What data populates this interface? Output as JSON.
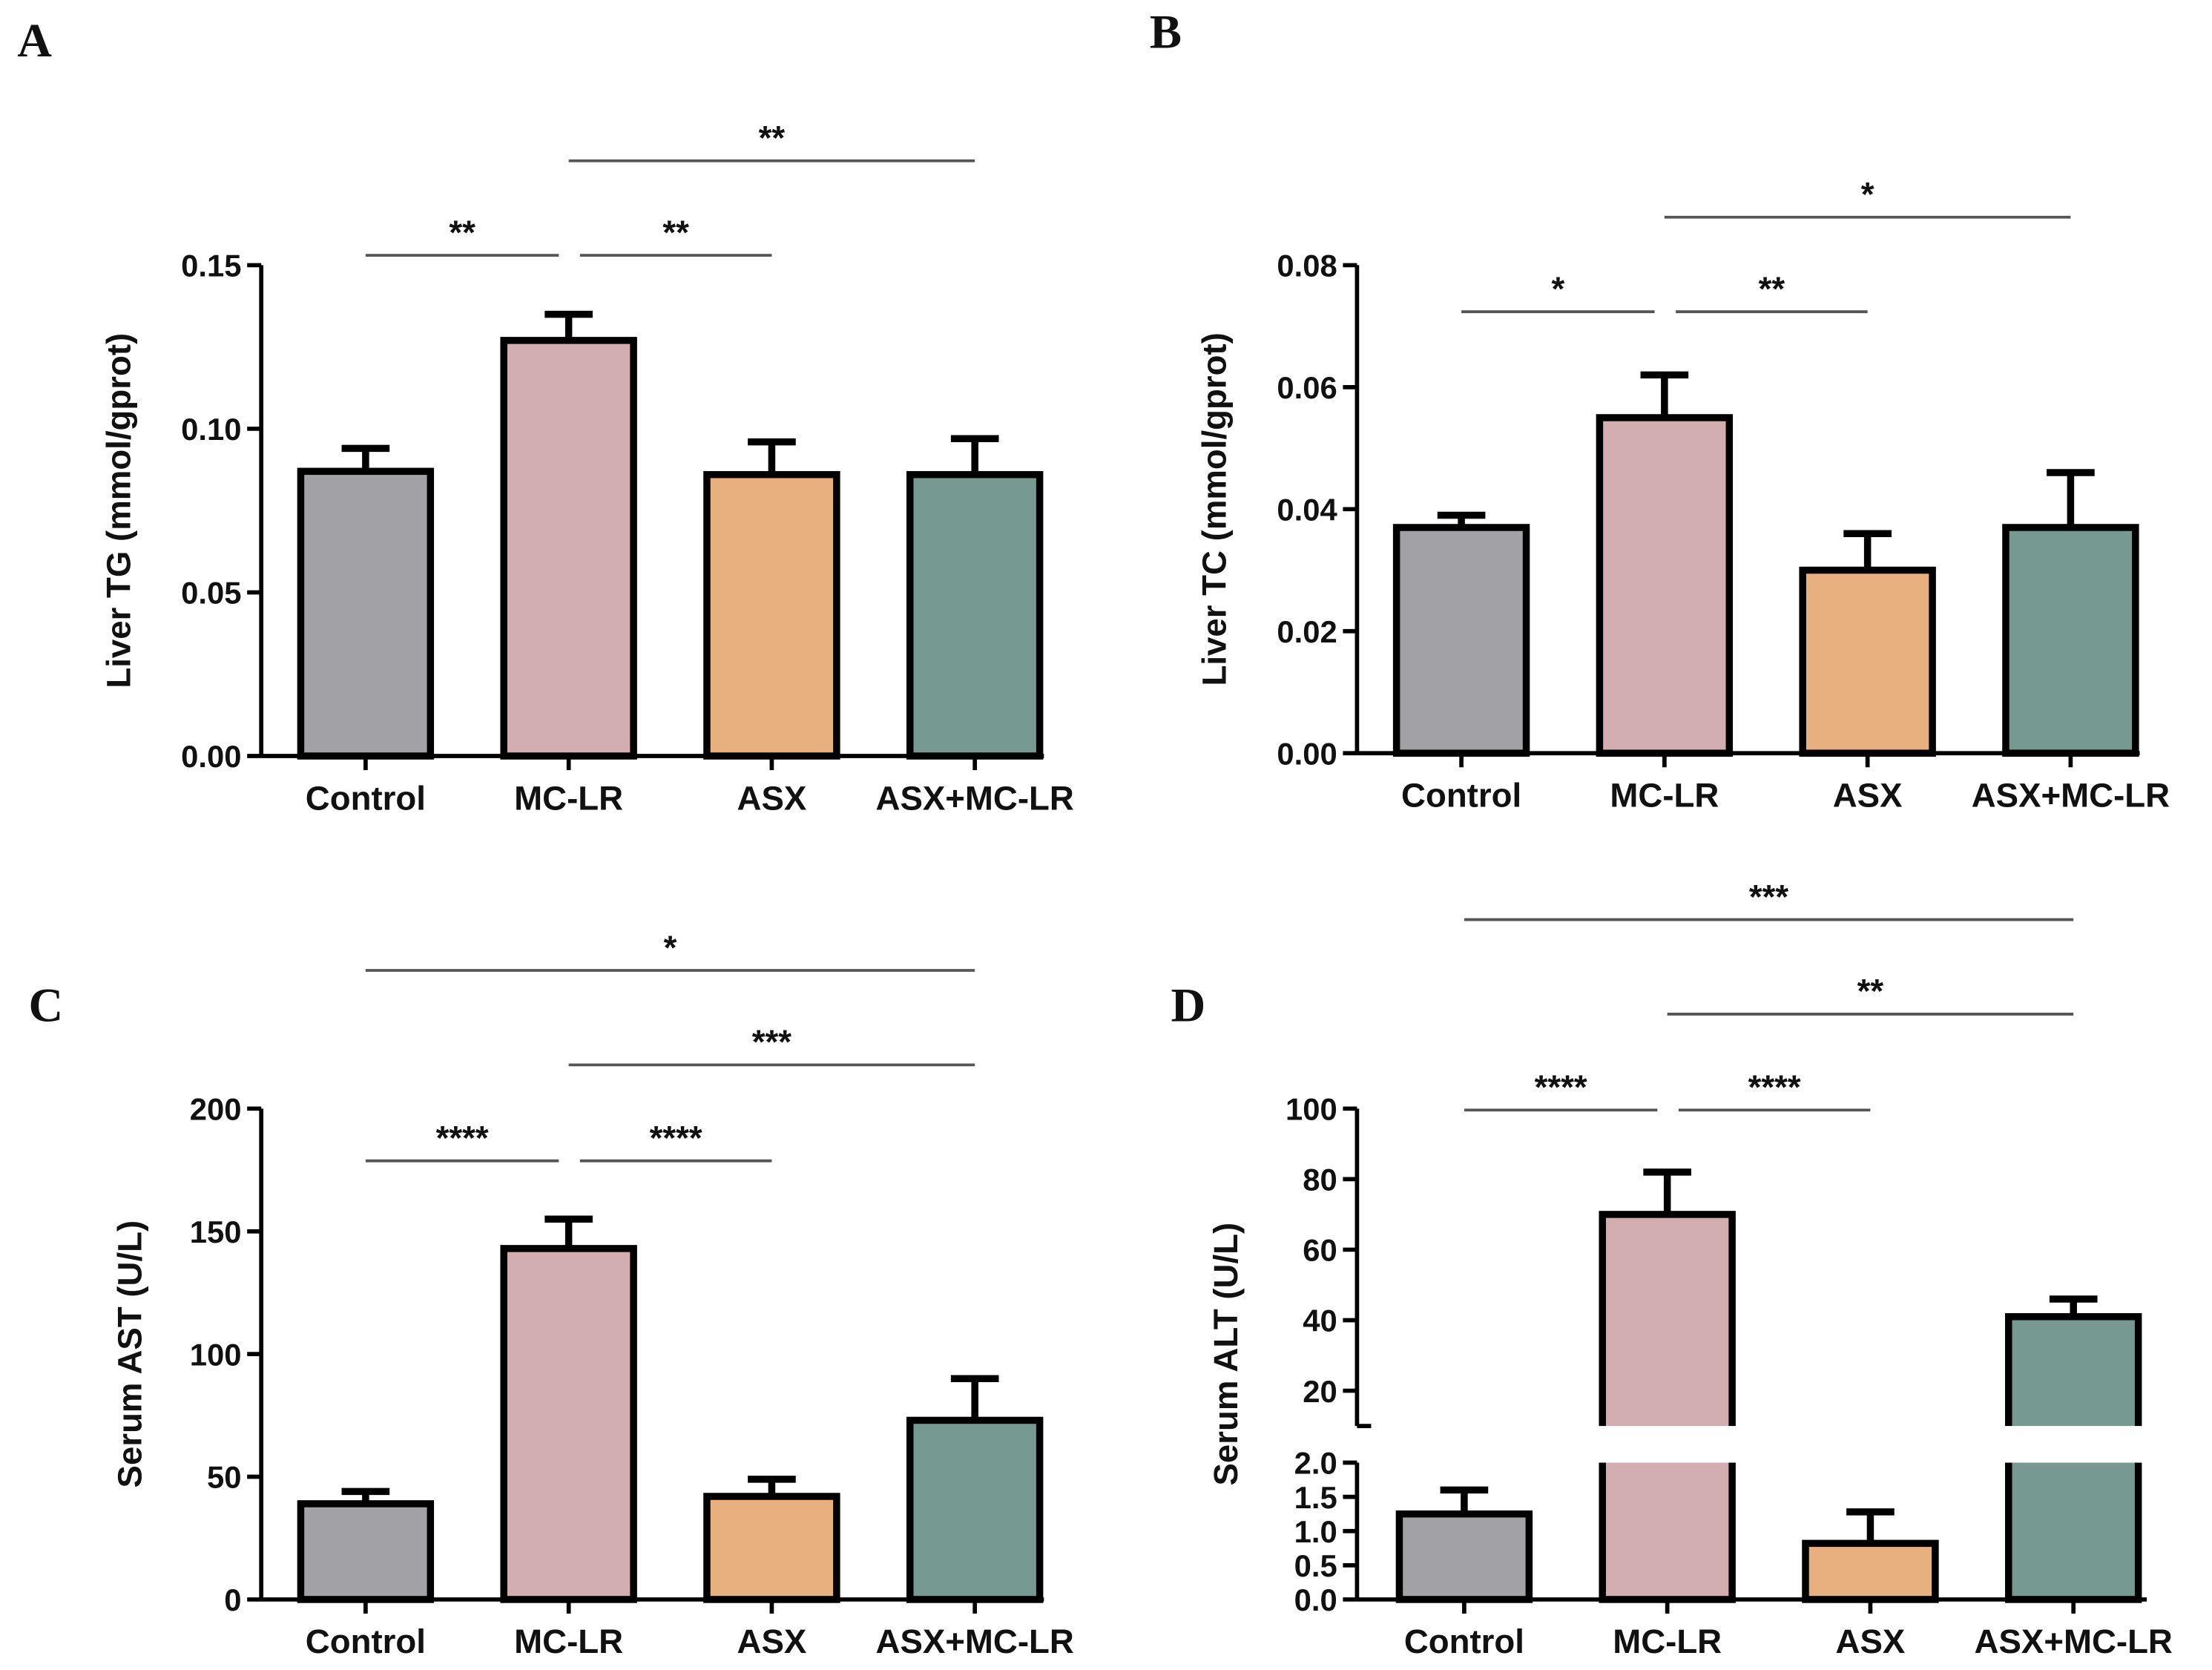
{
  "colors": {
    "Control": "#a2a1a6",
    "MC-LR": "#d3aeb1",
    "ASX": "#e8b07f",
    "ASX+MC-LR": "#769a91",
    "sig_line": "#555555"
  },
  "chart_data": [
    {
      "panel": "A",
      "type": "bar",
      "ylabel": "Liver  TG (mmol/gprot)",
      "categories": [
        "Control",
        "MC-LR",
        "ASX",
        "ASX+MC-LR"
      ],
      "values": [
        0.087,
        0.127,
        0.086,
        0.086
      ],
      "error_upper": [
        0.094,
        0.135,
        0.096,
        0.097
      ],
      "ylim": [
        0,
        0.15
      ],
      "yticks": [
        0,
        0.05,
        0.1,
        0.15
      ],
      "ytick_labels": [
        "0.00",
        "0.05",
        "0.10",
        "0.15"
      ],
      "significance": [
        {
          "from": 0,
          "to": 1,
          "label": "**"
        },
        {
          "from": 1,
          "to": 2,
          "label": "**"
        },
        {
          "from": 1,
          "to": 3,
          "label": "**"
        }
      ]
    },
    {
      "panel": "B",
      "type": "bar",
      "ylabel": "Liver  TC (mmol/gprot)",
      "categories": [
        "Control",
        "MC-LR",
        "ASX",
        "ASX+MC-LR"
      ],
      "values": [
        0.037,
        0.055,
        0.03,
        0.037
      ],
      "error_upper": [
        0.039,
        0.062,
        0.036,
        0.046
      ],
      "ylim": [
        0,
        0.08
      ],
      "yticks": [
        0,
        0.02,
        0.04,
        0.06,
        0.08
      ],
      "ytick_labels": [
        "0.00",
        "0.02",
        "0.04",
        "0.06",
        "0.08"
      ],
      "significance": [
        {
          "from": 0,
          "to": 1,
          "label": "*"
        },
        {
          "from": 1,
          "to": 2,
          "label": "**"
        },
        {
          "from": 1,
          "to": 3,
          "label": "*"
        }
      ]
    },
    {
      "panel": "C",
      "type": "bar",
      "ylabel": "Serum AST (U/L)",
      "categories": [
        "Control",
        "MC-LR",
        "ASX",
        "ASX+MC-LR"
      ],
      "values": [
        39,
        143,
        42,
        73
      ],
      "error_upper": [
        44,
        155,
        49,
        90
      ],
      "ylim": [
        0,
        200
      ],
      "yticks": [
        0,
        50,
        100,
        150,
        200
      ],
      "ytick_labels": [
        "0",
        "50",
        "100",
        "150",
        "200"
      ],
      "significance": [
        {
          "from": 0,
          "to": 1,
          "label": "****"
        },
        {
          "from": 1,
          "to": 2,
          "label": "****"
        },
        {
          "from": 1,
          "to": 3,
          "label": "***"
        },
        {
          "from": 0,
          "to": 3,
          "label": "*"
        }
      ]
    },
    {
      "panel": "D",
      "type": "bar",
      "ylabel": "Serum ALT (U/L)",
      "categories": [
        "Control",
        "MC-LR",
        "ASX",
        "ASX+MC-LR"
      ],
      "values": [
        1.25,
        70,
        0.82,
        41
      ],
      "error_upper": [
        1.6,
        82,
        1.28,
        46
      ],
      "ylim": [
        0,
        100
      ],
      "axis_break": [
        2,
        10
      ],
      "yticks": [
        0,
        0.5,
        1.0,
        1.5,
        2.0,
        20,
        40,
        60,
        80,
        100
      ],
      "ytick_labels": [
        "0.0",
        "0.5",
        "1.0",
        "1.5",
        "2.0",
        "20",
        "40",
        "60",
        "80",
        "100"
      ],
      "significance": [
        {
          "from": 0,
          "to": 1,
          "label": "****"
        },
        {
          "from": 1,
          "to": 2,
          "label": "****"
        },
        {
          "from": 1,
          "to": 3,
          "label": "**"
        },
        {
          "from": 0,
          "to": 3,
          "label": "***"
        }
      ]
    }
  ]
}
